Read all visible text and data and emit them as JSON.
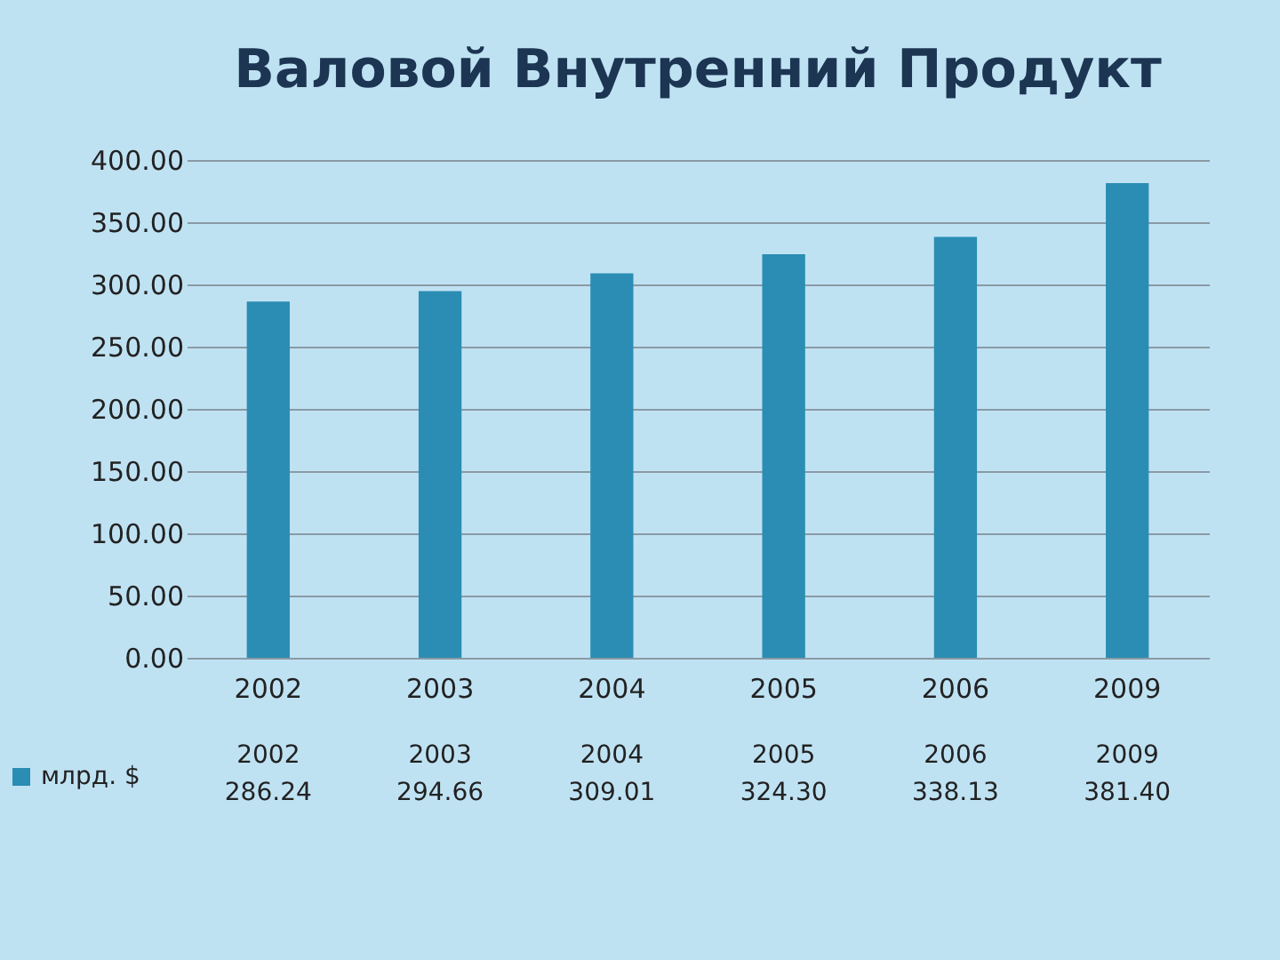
{
  "chart_data": {
    "type": "bar",
    "title": "Валовой Внутренний Продукт",
    "categories": [
      "2002",
      "2003",
      "2004",
      "2005",
      "2006",
      "2009"
    ],
    "series": [
      {
        "name": "млрд. $",
        "color": "#2b8db3",
        "values": [
          286.24,
          294.66,
          309.01,
          324.3,
          338.13,
          381.4
        ]
      }
    ],
    "value_labels": [
      "286.24",
      "294.66",
      "309.01",
      "324.30",
      "338.13",
      "381.40"
    ],
    "ylim": [
      0,
      400
    ],
    "yticks": [
      {
        "value": 0,
        "label": "0.00"
      },
      {
        "value": 50,
        "label": "50.00"
      },
      {
        "value": 100,
        "label": "100.00"
      },
      {
        "value": 150,
        "label": "150.00"
      },
      {
        "value": 200,
        "label": "200.00"
      },
      {
        "value": 250,
        "label": "250.00"
      },
      {
        "value": 300,
        "label": "300.00"
      },
      {
        "value": 350,
        "label": "350.00"
      },
      {
        "value": 400,
        "label": "400.00"
      }
    ],
    "grid": "y",
    "legend": "bottom left"
  }
}
